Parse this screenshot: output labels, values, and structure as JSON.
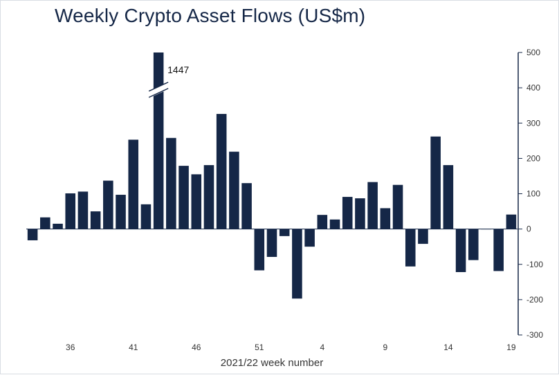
{
  "chart_data": {
    "type": "bar",
    "title": "Weekly Crypto Asset Flows (US$m)",
    "xlabel": "2021/22 week number",
    "ylabel": "",
    "ylim": [
      -300,
      500
    ],
    "yticks": [
      500,
      400,
      300,
      200,
      100,
      0,
      -100,
      -200,
      -300
    ],
    "y_axis_side": "right",
    "grid": false,
    "bar_color": "#152747",
    "categories": [
      "33",
      "34",
      "35",
      "36",
      "37",
      "38",
      "39",
      "40",
      "41",
      "42",
      "43",
      "44",
      "45",
      "46",
      "47",
      "48",
      "49",
      "50",
      "51",
      "52",
      "1",
      "2",
      "3",
      "4",
      "5",
      "6",
      "7",
      "8",
      "9",
      "10",
      "11",
      "12",
      "13",
      "14",
      "15",
      "16",
      "17",
      "18",
      "19"
    ],
    "x_tick_labels": [
      "36",
      "41",
      "46",
      "51",
      "4",
      "9",
      "14",
      "19"
    ],
    "values": [
      -32,
      33,
      15,
      101,
      106,
      50,
      137,
      97,
      253,
      70,
      1447,
      258,
      179,
      155,
      181,
      326,
      219,
      130,
      -117,
      -79,
      -20,
      -197,
      -50,
      40,
      27,
      91,
      87,
      133,
      59,
      125,
      -106,
      -42,
      262,
      181,
      -122,
      -88,
      0,
      -119,
      41
    ],
    "annotations": [
      {
        "category": "43",
        "text": "1447"
      }
    ],
    "axis_break": {
      "category": "43"
    }
  }
}
